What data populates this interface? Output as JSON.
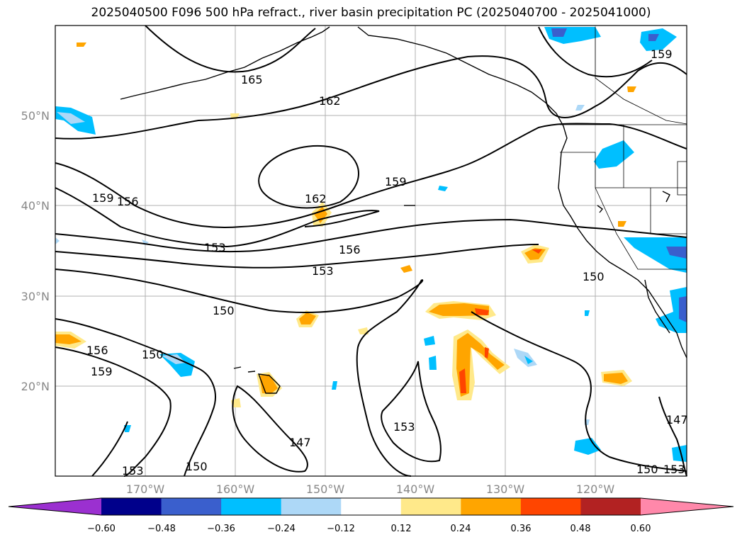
{
  "title": "2025040500 F096 500 hPa refract., river basin precipitation PC (2025040700 - 2025041000)",
  "lat_labels": [
    "50°N",
    "40°N",
    "30°N",
    "20°N"
  ],
  "lon_labels": [
    "170°W",
    "160°W",
    "150°W",
    "140°W",
    "130°W",
    "120°W"
  ],
  "contour_labels": [
    "165",
    "162",
    "162",
    "159",
    "159",
    "159",
    "156",
    "156",
    "153",
    "153",
    "153",
    "153",
    "150",
    "150",
    "150",
    "150",
    "150",
    "147",
    "147",
    "156",
    "159",
    "153"
  ],
  "colorbar": {
    "ticks": [
      "−0.60",
      "−0.48",
      "−0.36",
      "−0.24",
      "−0.12",
      "0.12",
      "0.24",
      "0.36",
      "0.48",
      "0.60"
    ],
    "colors": [
      "#9b30d0",
      "#00008b",
      "#3a5fcd",
      "#00bfff",
      "#add8f7",
      "#ffffff",
      "#ffe98a",
      "#ffa500",
      "#ff4500",
      "#b22222",
      "#ff88aa"
    ]
  }
}
